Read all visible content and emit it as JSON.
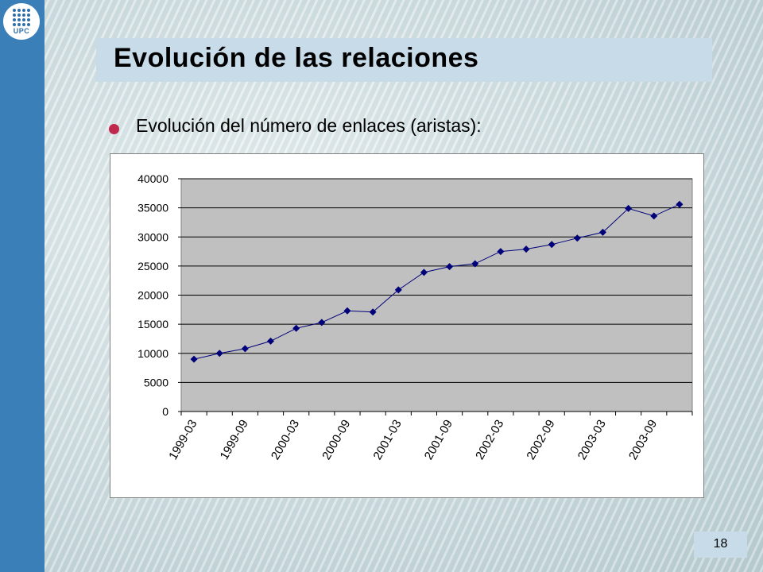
{
  "slide": {
    "title": "Evolución de las relaciones",
    "bullet": "Evolución del número de enlaces (aristas):",
    "page_number": "18",
    "logo_text": "UPC"
  },
  "colors": {
    "sidebar": "#3a7fb8",
    "title_bar": "#c7dbe8",
    "bullet": "#c0294d",
    "plot_area": "#c0c0c0",
    "series": "#00007a"
  },
  "chart_data": {
    "type": "line",
    "title": "",
    "xlabel": "",
    "ylabel": "",
    "ylim": [
      0,
      40000
    ],
    "yticks": [
      0,
      5000,
      10000,
      15000,
      20000,
      25000,
      30000,
      35000,
      40000
    ],
    "x_tick_labels": [
      "1999-03",
      "1999-09",
      "2000-03",
      "2000-09",
      "2001-03",
      "2001-09",
      "2002-03",
      "2002-09",
      "2003-03",
      "2003-09"
    ],
    "grid": true,
    "legend": "none",
    "x": [
      "1999-03",
      "1999-06",
      "1999-09",
      "1999-12",
      "2000-03",
      "2000-06",
      "2000-09",
      "2000-12",
      "2001-03",
      "2001-06",
      "2001-09",
      "2001-12",
      "2002-03",
      "2002-06",
      "2002-09",
      "2002-12",
      "2003-03",
      "2003-06",
      "2003-09",
      "2003-12"
    ],
    "series": [
      {
        "values": [
          9000,
          10000,
          10800,
          12100,
          14300,
          15300,
          17300,
          17100,
          20900,
          23900,
          24900,
          25400,
          27500,
          27900,
          28700,
          29800,
          30800,
          34900,
          33600,
          35600
        ]
      }
    ]
  }
}
